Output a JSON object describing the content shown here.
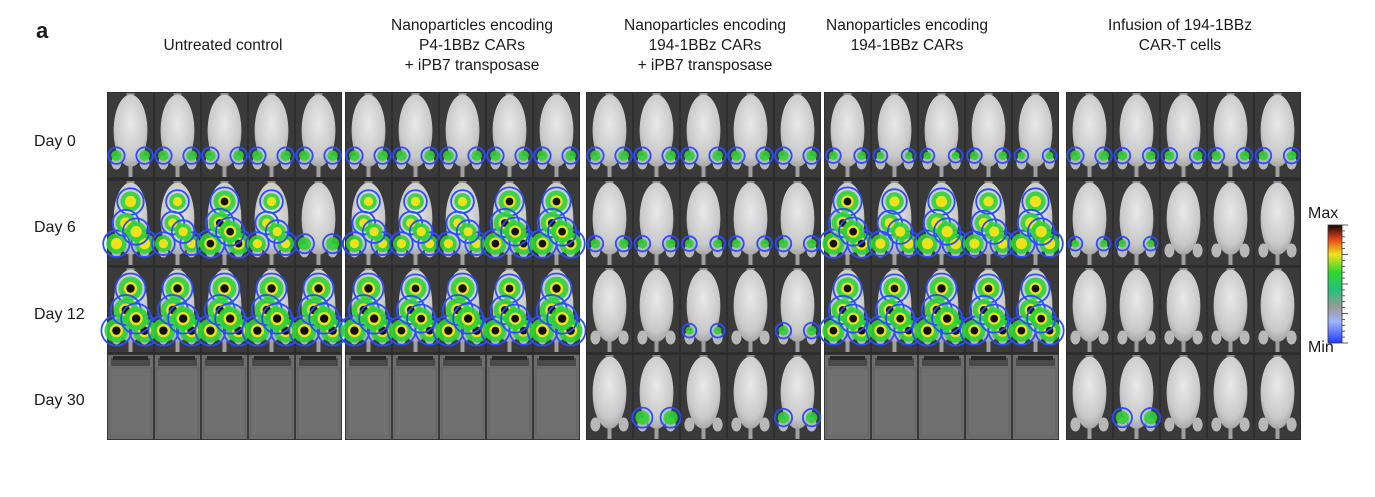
{
  "panel_letter": "a",
  "group_titles": [
    [
      "Untreated control"
    ],
    [
      "Nanoparticles encoding",
      "P4-1BBz CARs",
      "+ iPB7 transposase"
    ],
    [
      "Nanoparticles encoding",
      "194-1BBz CARs",
      "+ iPB7 transposase"
    ],
    [
      "Nanoparticles encoding",
      "194-1BBz CARs"
    ],
    [
      "Infusion of 194-1BBz",
      "CAR-T cells"
    ]
  ],
  "rows": [
    "Day 0",
    "Day 6",
    "Day 12",
    "Day 30"
  ],
  "colorbar": {
    "max_label": "Max",
    "min_label": "Min"
  },
  "signal_levels": [
    [
      [
        0.25,
        0.25,
        0.25,
        0.25,
        0.25
      ],
      [
        0.8,
        0.6,
        0.9,
        0.6,
        0.4
      ],
      [
        1,
        1,
        1,
        1,
        1
      ],
      [
        -1,
        -1,
        -1,
        -1,
        -1
      ]
    ],
    [
      [
        0.25,
        0.25,
        0.25,
        0.25,
        0.25
      ],
      [
        0.6,
        0.6,
        0.6,
        0.9,
        0.9
      ],
      [
        1,
        0.9,
        1,
        0.9,
        1
      ],
      [
        -1,
        -1,
        -1,
        -1,
        -1
      ]
    ],
    [
      [
        0.25,
        0.25,
        0.25,
        0.25,
        0.25
      ],
      [
        0.2,
        0.2,
        0.15,
        0.15,
        0.2
      ],
      [
        0,
        0,
        0.1,
        0.05,
        0.2
      ],
      [
        0,
        0.45,
        0,
        0,
        0.3
      ]
    ],
    [
      [
        0.15,
        0.1,
        0.1,
        0.15,
        0.1
      ],
      [
        0.9,
        0.7,
        0.8,
        0.7,
        0.8
      ],
      [
        0.9,
        0.9,
        1,
        0.9,
        0.9
      ],
      [
        -1,
        -1,
        -1,
        -1,
        -1
      ]
    ],
    [
      [
        0.25,
        0.2,
        0.2,
        0.2,
        0.2
      ],
      [
        0.1,
        0.1,
        0.05,
        0.05,
        0.05
      ],
      [
        0.05,
        0.05,
        0.05,
        0.05,
        0.05
      ],
      [
        0.05,
        0.4,
        0,
        0,
        0.05
      ]
    ]
  ]
}
